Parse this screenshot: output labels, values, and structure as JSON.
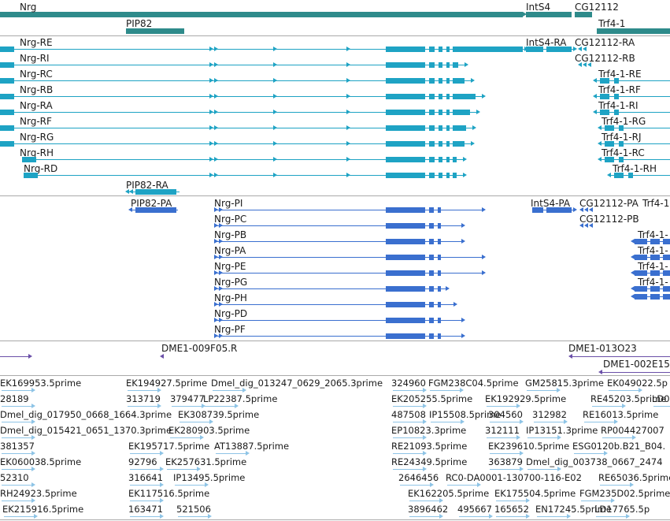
{
  "colors": {
    "gene": "#2e8b8b",
    "mrna": "#1ea3c4",
    "protein": "#3a6fcf",
    "deficiency": "#6a4fa8",
    "est": "#8ec4e6",
    "separator": "#a9a9a9"
  },
  "tracks": {
    "genes": {
      "labels": [
        "Nrg",
        "IntS4",
        "CG12112",
        "PIP82",
        "Trf4-1"
      ]
    },
    "transcripts": {
      "labels": [
        "Nrg-RE",
        "Nrg-RI",
        "Nrg-RC",
        "Nrg-RB",
        "Nrg-RA",
        "Nrg-RF",
        "Nrg-RG",
        "Nrg-RH",
        "Nrg-RD",
        "IntS4-RA",
        "CG12112-RA",
        "CG12112-RB",
        "Trf4-1-RE",
        "Trf4-1-RF",
        "Trf4-1-RI",
        "Trf4-1-RG",
        "Trf4-1-RJ",
        "Trf4-1-RC",
        "Trf4-1-RH",
        "PIP82-RA"
      ]
    },
    "proteins": {
      "labels": [
        "PIP82-PA",
        "Nrg-PI",
        "Nrg-PC",
        "Nrg-PB",
        "Nrg-PA",
        "Nrg-PE",
        "Nrg-PG",
        "Nrg-PH",
        "Nrg-PD",
        "Nrg-PF",
        "IntS4-PA",
        "CG12112-PA",
        "Trf4-1",
        "CG12112-PB",
        "Trf4-1-",
        "Trf4-1-",
        "Trf4-1-",
        "Trf4-1-"
      ]
    },
    "deficiencies": {
      "labels": [
        "DME1-009F05.R",
        "DME1-013O23",
        "DME1-002E15"
      ]
    },
    "ests": {
      "labels": [
        "EK169953.5prime",
        "EK194927.5prime",
        "Dmel_dig_013247_0629_2065.3prime",
        "324960",
        "FGM238C04.5prime",
        "GM25815.3prime",
        "EK049022.5p",
        "28189",
        "313719",
        "379477",
        "LP22387.5prime",
        "EK205255.5prime",
        "EK192929.5prime",
        "RE45203.5prime",
        "LD0",
        "Dmel_dig_017950_0668_1664.3prime",
        "EK308739.5prime",
        "487508",
        "IP15508.5prime",
        "304560",
        "312982",
        "RE16013.5prime",
        "Dmel_dig_015421_0651_1370.3prime",
        "EK280903.5prime",
        "EP10823.3prime",
        "312111",
        "IP13151.3prime",
        "RP004427007",
        "381357",
        "EK195717.5prime",
        "AT13887.5prime",
        "RE21093.5prime",
        "EK239610.5prime",
        "ESG0120b.B21_B04.",
        "EK060038.5prime",
        "92796",
        "EK257631.5prime",
        "RE24349.5prime",
        "363879",
        "Dmel_dig_003738_0667_2474",
        "52310",
        "316641",
        "IP13495.5prime",
        "2646456",
        "RC0-DA0001-130700-116-E02",
        "RE65036.5prime",
        "RH24923.5prime",
        "EK117516.5prime",
        "EK162205.5prime",
        "EK175504.5prime",
        "FGM235D02.5prime",
        "EK215916.5prime",
        "163471",
        "521506",
        "3896462",
        "495667",
        "165652",
        "EN17245.5prime",
        "LD17765.5p"
      ]
    }
  }
}
